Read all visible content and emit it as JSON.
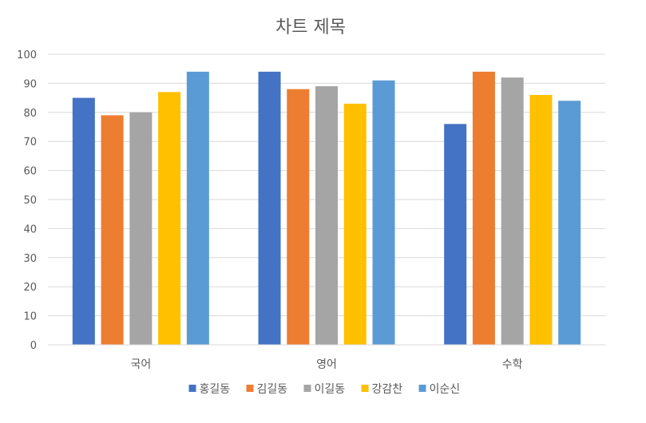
{
  "chart_data": {
    "type": "bar",
    "title": "차트 제목",
    "xlabel": "",
    "ylabel": "",
    "categories": [
      "국어",
      "영어",
      "수학"
    ],
    "ylim": [
      0,
      100
    ],
    "yticks": [
      0,
      10,
      20,
      30,
      40,
      50,
      60,
      70,
      80,
      90,
      100
    ],
    "grid": true,
    "legend_position": "bottom",
    "series": [
      {
        "name": "홍길동",
        "color": "#4472C4",
        "values": [
          85,
          94,
          76
        ]
      },
      {
        "name": "김길동",
        "color": "#ED7D31",
        "values": [
          79,
          88,
          94
        ]
      },
      {
        "name": "이길동",
        "color": "#A5A5A5",
        "values": [
          80,
          89,
          92
        ]
      },
      {
        "name": "강감찬",
        "color": "#FFC000",
        "values": [
          87,
          83,
          86
        ]
      },
      {
        "name": "이순신",
        "color": "#5B9BD5",
        "values": [
          94,
          91,
          84
        ]
      }
    ]
  }
}
